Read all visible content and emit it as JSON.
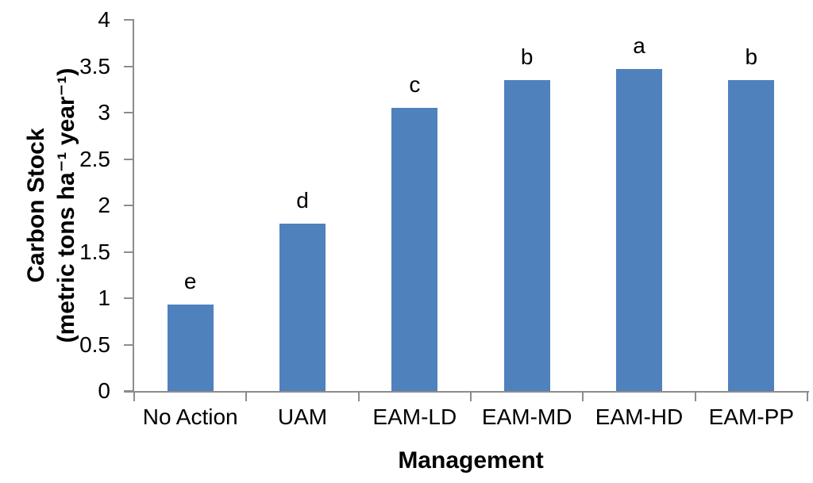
{
  "chart_data": {
    "type": "bar",
    "title": "",
    "categories": [
      "No Action",
      "UAM",
      "EAM-LD",
      "EAM-MD",
      "EAM-HD",
      "EAM-PP"
    ],
    "values": [
      0.93,
      1.8,
      3.05,
      3.35,
      3.47,
      3.35
    ],
    "bar_letter_labels": [
      "e",
      "d",
      "c",
      "b",
      "a",
      "b"
    ],
    "xlabel": "Management",
    "ylabel": "Carbon Stock (metric tons ha⁻¹ year⁻¹)",
    "ylabel_line1": "Carbon Stock",
    "ylabel_line2": "(metric tons ha⁻¹ year⁻¹)",
    "ylim": [
      0,
      4
    ],
    "yticks": [
      "0",
      "0.5",
      "1",
      "1.5",
      "2",
      "2.5",
      "3",
      "3.5",
      "4"
    ],
    "grid": false,
    "legend": false,
    "bar_color": "#4F81BD",
    "axis_color": "#8C8C8C",
    "text_color": "#000000"
  }
}
